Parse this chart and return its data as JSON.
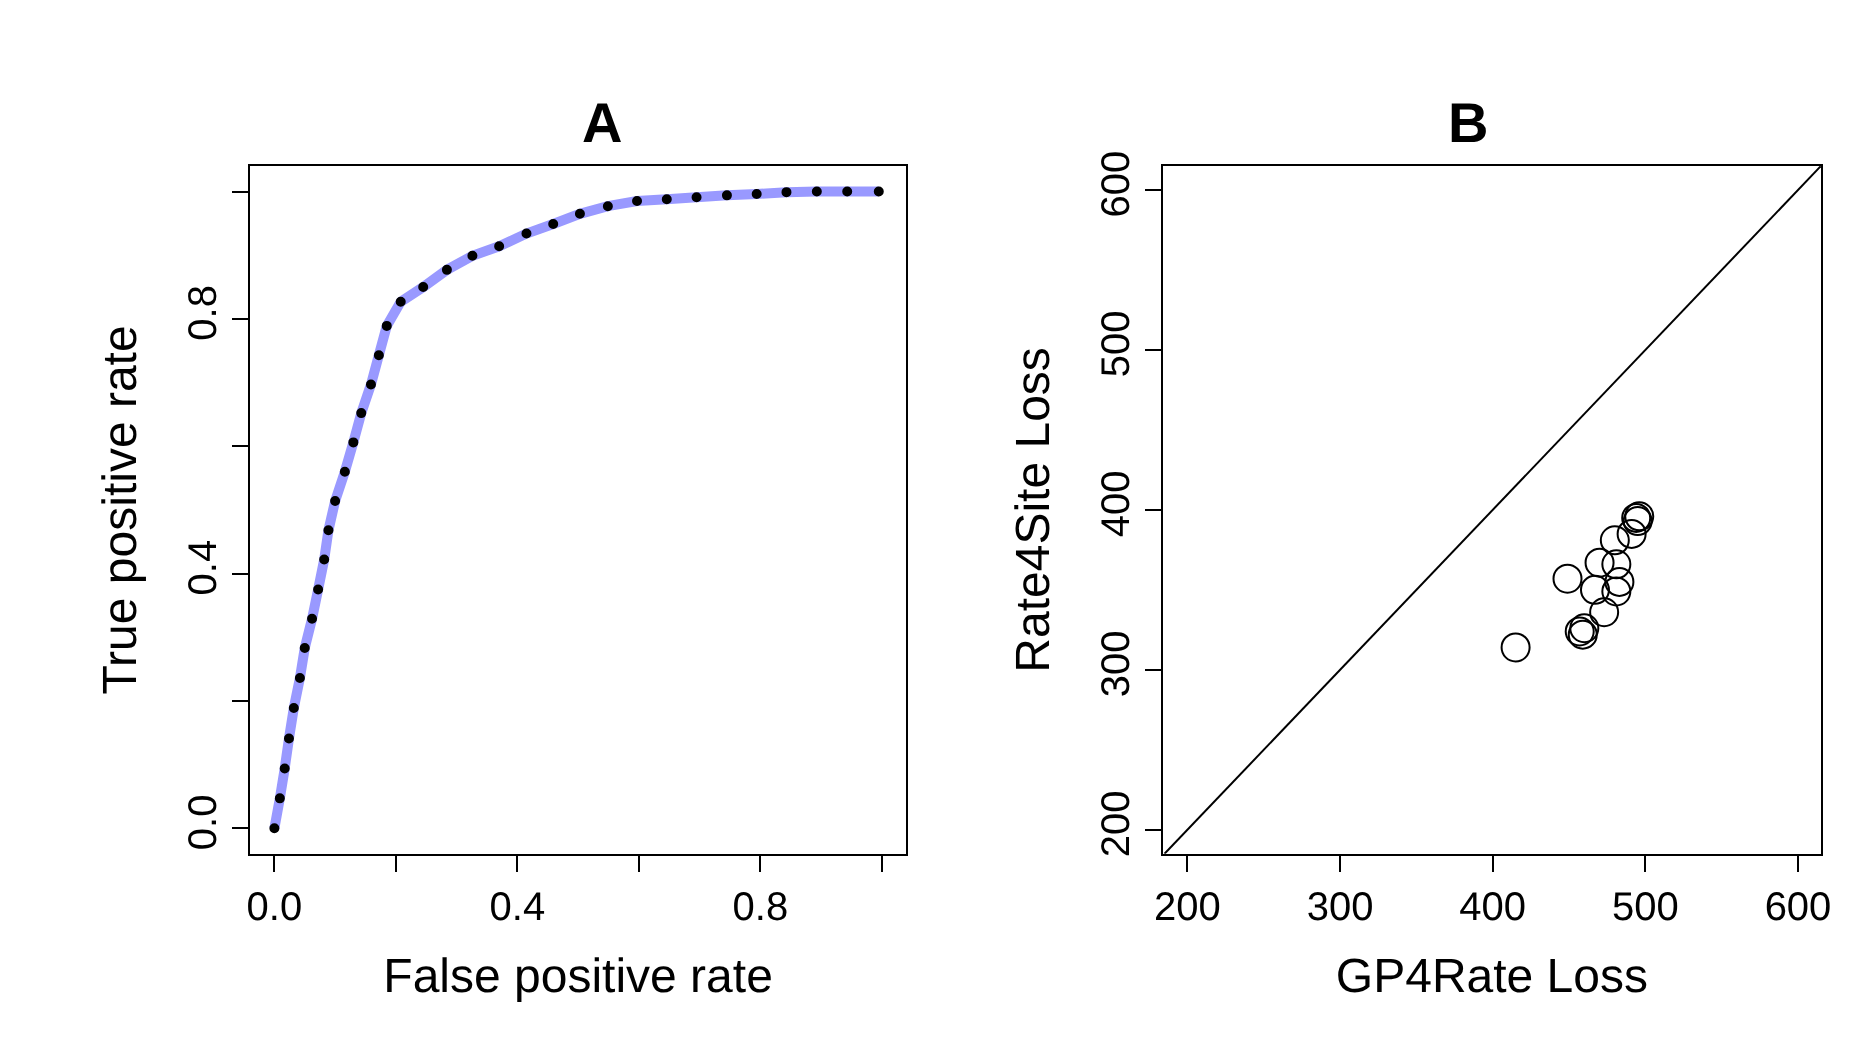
{
  "chart_data": [
    {
      "type": "line",
      "title": "A",
      "xlabel": "False positive rate",
      "ylabel": "True positive rate",
      "xlim": [
        -0.04,
        1.04
      ],
      "ylim": [
        -0.04,
        1.04
      ],
      "xticks": [
        {
          "value": 0,
          "label": "0.0"
        },
        {
          "value": 0.2,
          "label": null
        },
        0.4,
        {
          "value": 0.6,
          "label": null
        },
        0.8,
        {
          "value": 1,
          "label": null
        }
      ],
      "yticks": [
        {
          "value": 0,
          "label": "0.0"
        },
        {
          "value": 0.2,
          "label": null
        },
        0.4,
        {
          "value": 0.6,
          "label": null
        },
        0.8,
        {
          "value": 1,
          "label": null
        }
      ],
      "x": [
        0,
        0.009,
        0.017,
        0.024,
        0.032,
        0.042,
        0.05,
        0.062,
        0.072,
        0.082,
        0.089,
        0.1,
        0.116,
        0.13,
        0.143,
        0.159,
        0.172,
        0.185,
        0.208,
        0.245,
        0.284,
        0.326,
        0.37,
        0.415,
        0.459,
        0.503,
        0.549,
        0.597,
        0.646,
        0.695,
        0.745,
        0.794,
        0.843,
        0.893,
        0.943,
        0.995
      ],
      "series": [
        {
          "type": "line",
          "line_style": "solid",
          "marker": "none",
          "color": "#9999ff",
          "values": [
            0,
            0.047,
            0.094,
            0.141,
            0.189,
            0.236,
            0.283,
            0.329,
            0.375,
            0.422,
            0.468,
            0.514,
            0.56,
            0.606,
            0.652,
            0.697,
            0.743,
            0.789,
            0.827,
            0.85,
            0.877,
            0.899,
            0.914,
            0.934,
            0.949,
            0.965,
            0.977,
            0.985,
            0.988,
            0.991,
            0.994,
            0.996,
            0.999,
            1.0,
            1.0,
            1.0
          ]
        },
        {
          "type": "scatter",
          "marker": "circle",
          "color": "#000000",
          "values": [
            0,
            0.047,
            0.094,
            0.141,
            0.189,
            0.236,
            0.283,
            0.329,
            0.375,
            0.422,
            0.468,
            0.514,
            0.56,
            0.606,
            0.652,
            0.697,
            0.743,
            0.789,
            0.827,
            0.85,
            0.877,
            0.899,
            0.914,
            0.934,
            0.949,
            0.965,
            0.977,
            0.985,
            0.988,
            0.991,
            0.994,
            0.996,
            0.999,
            1.0,
            1.0,
            1.0
          ]
        }
      ]
    },
    {
      "type": "scatter",
      "title": "B",
      "xlabel": "GP4Rate Loss",
      "ylabel": "Rate4Site Loss",
      "xlim": [
        184,
        615
      ],
      "ylim": [
        185,
        615
      ],
      "xticks": [
        200,
        300,
        400,
        500,
        600
      ],
      "yticks": [
        200,
        300,
        400,
        500,
        600
      ],
      "series": [
        {
          "type": "scatter",
          "marker": "circle",
          "color": "#000000",
          "x": [
            415,
            449,
            457,
            459,
            460,
            470,
            467,
            473,
            480,
            481,
            483,
            481,
            491,
            494,
            496,
            495
          ],
          "values": [
            314,
            357,
            324,
            322,
            326,
            367,
            350,
            336,
            381,
            366,
            355,
            349,
            385,
            395,
            396,
            393
          ]
        },
        {
          "type": "line",
          "line_style": "solid",
          "marker": "none",
          "color": "#000000",
          "x": [
            185,
            615
          ],
          "values": [
            185,
            615
          ]
        }
      ]
    }
  ]
}
